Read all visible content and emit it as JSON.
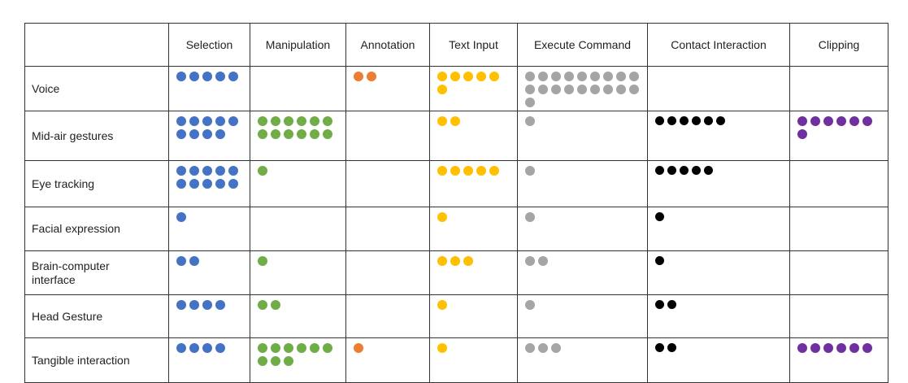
{
  "columns": [
    "Selection",
    "Manipulation",
    "Annotation",
    "Text Input",
    "Execute Command",
    "Contact Interaction",
    "Clipping"
  ],
  "colors": {
    "Selection": "#4472C4",
    "Manipulation": "#70AD47",
    "Annotation": "#ED7D31",
    "Text Input": "#FFC000",
    "Execute Command": "#A5A5A5",
    "Contact Interaction": "#000000",
    "Clipping": "#7030A0"
  },
  "rows": [
    {
      "label": "Voice",
      "counts": [
        5,
        0,
        2,
        6,
        19,
        0,
        0
      ]
    },
    {
      "label": "Mid-air gestures",
      "counts": [
        9,
        12,
        0,
        2,
        1,
        6,
        7
      ]
    },
    {
      "label": "Eye tracking",
      "counts": [
        10,
        1,
        0,
        5,
        1,
        5,
        0
      ]
    },
    {
      "label": "Facial expression",
      "counts": [
        1,
        0,
        0,
        1,
        1,
        1,
        0
      ]
    },
    {
      "label": "Brain-computer interface",
      "counts": [
        2,
        1,
        0,
        3,
        2,
        1,
        0
      ]
    },
    {
      "label": "Head Gesture",
      "counts": [
        4,
        2,
        0,
        1,
        1,
        2,
        0
      ]
    },
    {
      "label": "Tangible interaction",
      "counts": [
        4,
        9,
        1,
        1,
        3,
        2,
        6
      ]
    }
  ]
}
